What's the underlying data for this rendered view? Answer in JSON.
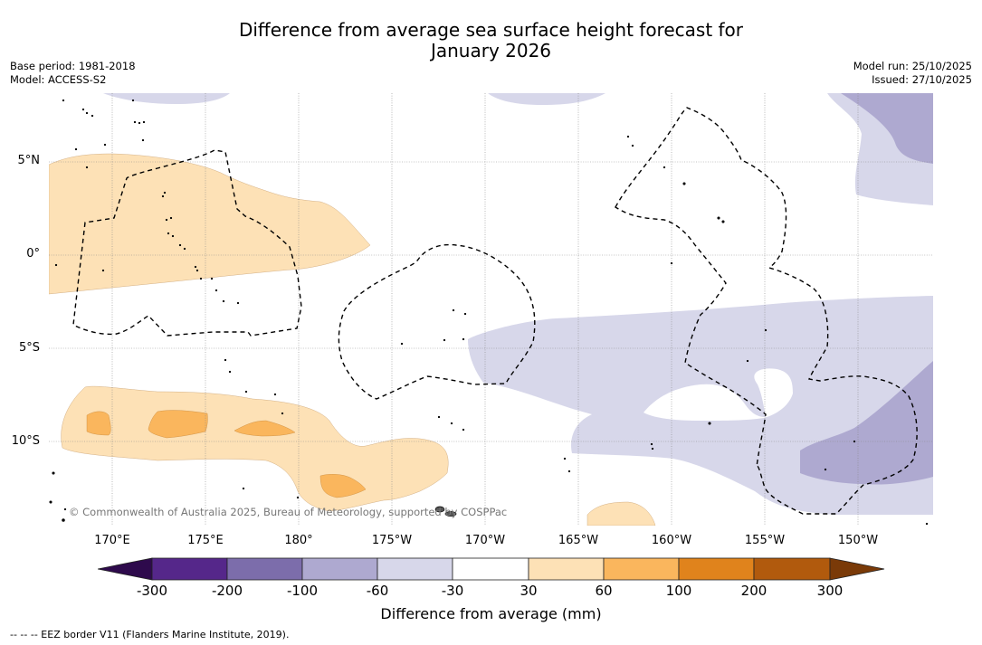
{
  "title": {
    "line1": "Difference from average sea surface height forecast for",
    "line2": "January 2026"
  },
  "meta": {
    "base_period": "Base period: 1981-2018",
    "model": "Model: ACCESS-S2",
    "model_run": "Model run: 25/10/2025",
    "issued": "Issued: 27/10/2025"
  },
  "map": {
    "lat_labels": [
      "5°N",
      "0°",
      "5°S",
      "10°S"
    ],
    "lon_labels": [
      "170°E",
      "175°E",
      "180°",
      "175°W",
      "170°W",
      "165°W",
      "160°W",
      "155°W",
      "150°W"
    ],
    "copyright": "© Commonwealth of Australia 2025, Bureau of Meteorology, supported by COSPPac",
    "eez_border_style": "dashed black"
  },
  "legend": {
    "ticks": [
      "-300",
      "-200",
      "-100",
      "-60",
      "-30",
      "30",
      "60",
      "100",
      "200",
      "300"
    ],
    "label": "Difference from average (mm)",
    "colors": {
      "below_min": "#2e0a4c",
      "c_300_200": "#55278a",
      "c_200_100": "#7c6dab",
      "c_100_60": "#aea9d0",
      "c_60_30": "#d7d7ea",
      "c_30_30": "#ffffff",
      "c_30_60": "#fde1b6",
      "c_60_100": "#fab65d",
      "c_100_200": "#e0831c",
      "c_200_300": "#b15a0d",
      "above_max": "#7a3a08"
    }
  },
  "footer": "--  --  -- EEZ border V11 (Flanders Marine Institute, 2019)."
}
